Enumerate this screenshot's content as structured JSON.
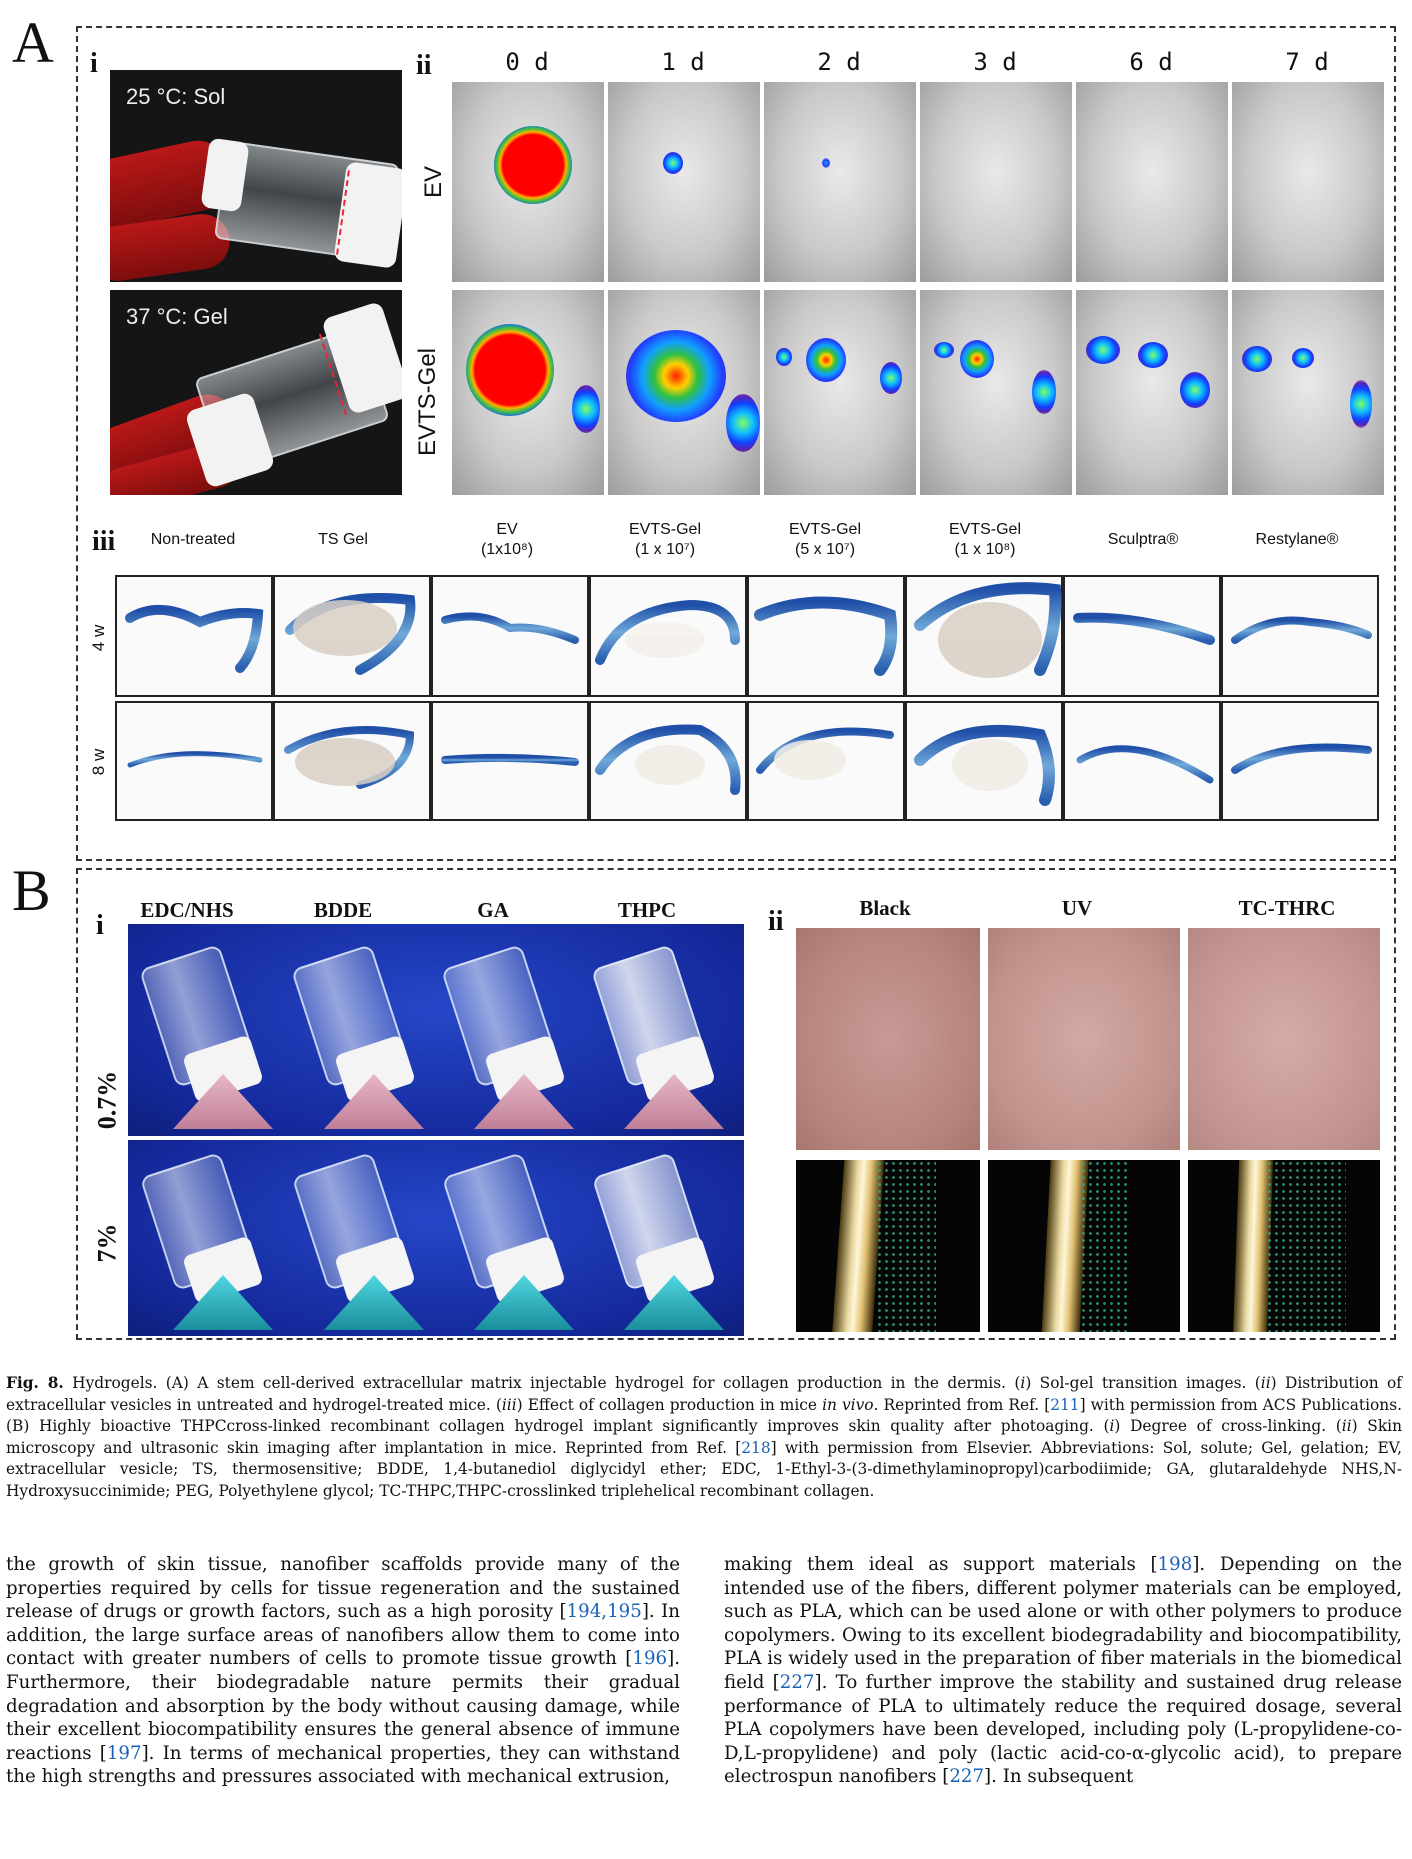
{
  "panelA": {
    "letter": "A",
    "i": {
      "num": "i",
      "top_label": "25 °C: Sol",
      "bottom_label": "37 °C: Gel"
    },
    "ii": {
      "num": "ii",
      "days": [
        "0 d",
        "1 d",
        "2 d",
        "3 d",
        "6 d",
        "7 d"
      ],
      "rows": [
        "EV",
        "EVTS-Gel"
      ]
    },
    "iii": {
      "num": "iii",
      "columns": [
        {
          "line1": "Non-treated",
          "line2": ""
        },
        {
          "line1": "TS Gel",
          "line2": ""
        },
        {
          "line1": "EV",
          "line2": "(1x10⁸)"
        },
        {
          "line1": "EVTS-Gel",
          "line2": "(1 x 10⁷)"
        },
        {
          "line1": "EVTS-Gel",
          "line2": "(5 x 10⁷)"
        },
        {
          "line1": "EVTS-Gel",
          "line2": "(1 x 10⁸)"
        },
        {
          "line1": "Sculptra®",
          "line2": ""
        },
        {
          "line1": "Restylane®",
          "line2": ""
        }
      ],
      "weeks": [
        "4 w",
        "8 w"
      ]
    }
  },
  "panelB": {
    "letter": "B",
    "i": {
      "num": "i",
      "columns": [
        "EDC/NHS",
        "BDDE",
        "GA",
        "THPC"
      ],
      "rows": [
        "0.7%",
        "7%"
      ]
    },
    "ii": {
      "num": "ii",
      "columns": [
        "Black",
        "UV",
        "TC-THRC"
      ]
    }
  },
  "caption": {
    "fig": "Fig. 8.",
    "p1": " Hydrogels. (A) A stem cell-derived extracellular matrix injectable hydrogel for collagen production in the dermis. (",
    "i1": "i",
    "p2": ") Sol-gel transition images. (",
    "i2": "ii",
    "p3": ") Distribution of extracellular vesicles in untreated and hydrogel-treated mice. (",
    "i3": "iii",
    "p4": ") Effect of collagen production in mice ",
    "i4": "in vivo",
    "p5": ". Reprinted from Ref. [",
    "r1": "211",
    "p6": "] with permission from ACS Publications. (B) Highly bioactive THPCcross-linked recombinant collagen hydrogel implant significantly improves skin quality after photoaging. (",
    "i5": "i",
    "p7": ") Degree of cross-linking. (",
    "i6": "ii",
    "p8": ") Skin microscopy and ultrasonic skin imaging after implantation in mice. Reprinted from Ref. [",
    "r2": "218",
    "p9": "] with permission from Elsevier. Abbreviations: Sol, solute; Gel, gelation; EV, extracellular vesicle; TS, thermosensitive; BDDE, 1,4-butanediol diglycidyl ether; EDC, 1-Ethyl-3-(3-dimethylaminopropyl)carbodiimide; GA, glutaraldehyde NHS,N-Hydroxysuccinimide; PEG, Polyethylene glycol; TC-THPC,THPC-crosslinked triplehelical recombinant collagen."
  },
  "body": {
    "left": {
      "a": "the growth of skin tissue, nanofiber scaffolds provide many of the properties required by cells for tissue regeneration and the sustained release of drugs or growth factors, such as a high porosity [",
      "r1": "194,195",
      "b": "]. In addition, the large surface areas of nanofibers allow them to come into contact with greater numbers of cells to promote tissue growth [",
      "r2": "196",
      "c": "]. Furthermore, their biodegradable nature permits their gradual degradation and absorption by the body without causing damage, while their excellent biocompatibility ensures the general absence of immune reactions [",
      "r3": "197",
      "d": "]. In terms of mechanical properties, they can withstand the high strengths and pressures associated with mechanical extrusion,"
    },
    "right": {
      "a": "making them ideal as support materials [",
      "r1": "198",
      "b": "]. Depending on the intended use of the fibers, different polymer materials can be employed, such as PLA, which can be used alone or with other polymers to produce copolymers. Owing to its excellent biodegradability and biocompatibility, PLA is widely used in the preparation of fiber materials in the biomedical field [",
      "r2": "227",
      "c": "]. To further improve the stability and sustained drug release performance of PLA to ultimately reduce the required dosage, several PLA copolymers have been developed, including poly (L-propylidene-co-D,L-propylidene) and poly (lactic acid-co-α-glycolic acid), to prepare electrospun nanofibers [",
      "r3": "227",
      "d": "]. In subsequent"
    }
  }
}
